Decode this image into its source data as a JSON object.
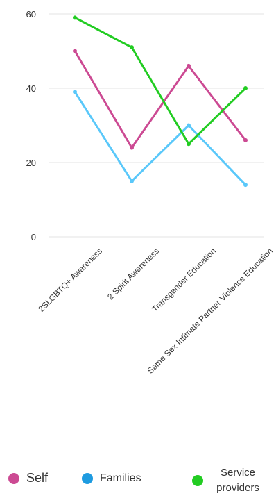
{
  "chart_data": {
    "type": "line",
    "categories": [
      "2SLGBTQ+ Awareness",
      "2 Spirit Awareness",
      "Transgender Education",
      "Same Sex Intimate Partner Violence Education"
    ],
    "series": [
      {
        "name": "Self",
        "values": [
          50,
          24,
          46,
          26
        ],
        "color": "#cc4a93"
      },
      {
        "name": "Families",
        "values": [
          39,
          15,
          30,
          14
        ],
        "color": "#5ac8fa"
      },
      {
        "name": "Service providers",
        "values": [
          59,
          51,
          25,
          40
        ],
        "color": "#22cc22"
      }
    ],
    "ylim": [
      0,
      60
    ],
    "yticks": [
      0,
      20,
      40,
      60
    ],
    "grid": true,
    "legend_position": "bottom"
  },
  "legend": {
    "items": [
      {
        "label": "Self",
        "color": "#cc4a93"
      },
      {
        "label": "Families",
        "color": "#1e9be0"
      },
      {
        "label": "Service providers",
        "color": "#22cc22"
      }
    ]
  }
}
